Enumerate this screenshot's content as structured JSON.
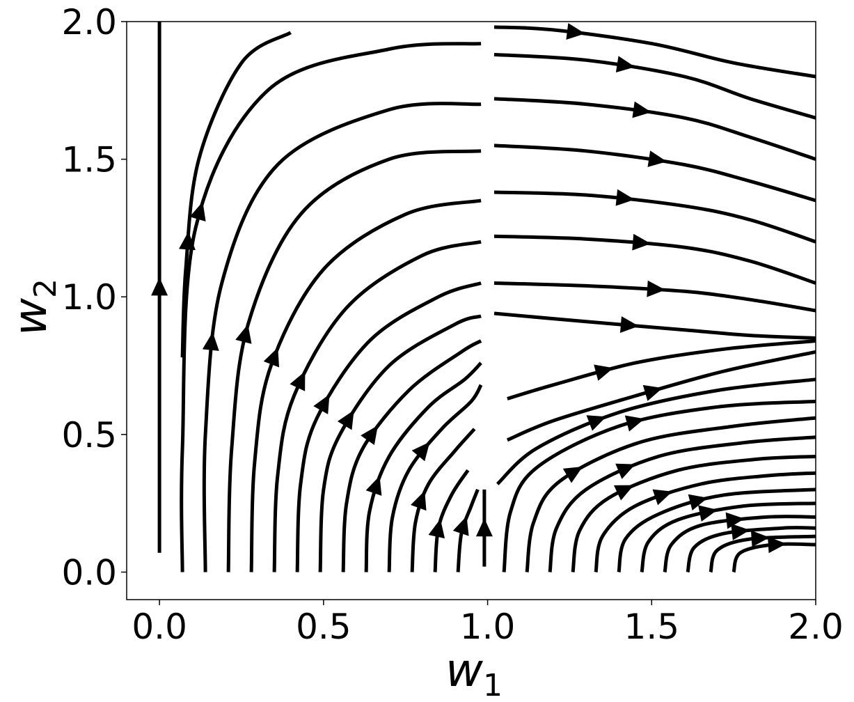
{
  "chart_data": {
    "type": "streamplot",
    "title": "",
    "xlabel": {
      "base": "w",
      "subscript": "1"
    },
    "ylabel": {
      "base": "w",
      "subscript": "2"
    },
    "xlim": [
      -0.1,
      2.0
    ],
    "ylim": [
      -0.1,
      2.0
    ],
    "xticks": [
      0.0,
      0.5,
      1.0,
      1.5,
      2.0
    ],
    "xtick_labels": [
      "0.0",
      "0.5",
      "1.0",
      "1.5",
      "2.0"
    ],
    "yticks": [
      0.0,
      0.5,
      1.0,
      1.5,
      2.0
    ],
    "ytick_labels": [
      "0.0",
      "0.5",
      "1.0",
      "1.5",
      "2.0"
    ],
    "grid": false,
    "line_color": "#000000",
    "left_band_top_w2": [
      0.76,
      1.14,
      1.51,
      1.71,
      1.88,
      1.96,
      2.0,
      2.0,
      2.0
    ],
    "left_band_pivot_w2": [
      0.24,
      0.3,
      0.45,
      0.6,
      0.75,
      0.85,
      0.92,
      0.95,
      0.96
    ],
    "right_band_bottom_w2": [
      0.84,
      0.8,
      0.7,
      0.62,
      0.56,
      0.47,
      0.42,
      0.34,
      0.26,
      0.18,
      0.1,
      0.02
    ],
    "right_band_pivot_w2": [
      0.78,
      0.74,
      0.66,
      0.58,
      0.52,
      0.43,
      0.38,
      0.3,
      0.22,
      0.16,
      0.09,
      0.01
    ],
    "streamlines": [
      {
        "points": [
          [
            0.0,
            0.07
          ],
          [
            0.0,
            2.0
          ]
        ],
        "arrows": [
          0.5
        ]
      },
      {
        "points": [
          [
            0.07,
            0.78
          ],
          [
            0.08,
            1.1
          ],
          [
            0.12,
            1.5
          ],
          [
            0.25,
            1.85
          ],
          [
            0.4,
            1.96
          ]
        ],
        "arrows": [
          0.32
        ]
      },
      {
        "points": [
          [
            0.07,
            0.0
          ],
          [
            0.07,
            0.45
          ],
          [
            0.11,
            1.25
          ],
          [
            0.33,
            1.75
          ],
          [
            0.7,
            1.9
          ],
          [
            0.98,
            1.92
          ]
        ],
        "arrows": [
          0.5
        ]
      },
      {
        "points": [
          [
            0.14,
            0.0
          ],
          [
            0.14,
            0.5
          ],
          [
            0.19,
            1.05
          ],
          [
            0.36,
            1.48
          ],
          [
            0.7,
            1.68
          ],
          [
            0.98,
            1.7
          ]
        ],
        "arrows": [
          0.36
        ]
      },
      {
        "points": [
          [
            0.21,
            0.0
          ],
          [
            0.22,
            0.45
          ],
          [
            0.27,
            0.9
          ],
          [
            0.43,
            1.3
          ],
          [
            0.7,
            1.5
          ],
          [
            0.98,
            1.53
          ]
        ],
        "arrows": [
          0.42
        ]
      },
      {
        "points": [
          [
            0.28,
            0.0
          ],
          [
            0.29,
            0.4
          ],
          [
            0.34,
            0.75
          ],
          [
            0.5,
            1.1
          ],
          [
            0.75,
            1.3
          ],
          [
            0.98,
            1.35
          ]
        ],
        "arrows": [
          0.44
        ]
      },
      {
        "points": [
          [
            0.35,
            0.0
          ],
          [
            0.36,
            0.35
          ],
          [
            0.41,
            0.64
          ],
          [
            0.57,
            0.96
          ],
          [
            0.8,
            1.15
          ],
          [
            0.98,
            1.2
          ]
        ],
        "arrows": [
          0.45
        ]
      },
      {
        "points": [
          [
            0.42,
            0.0
          ],
          [
            0.43,
            0.32
          ],
          [
            0.48,
            0.56
          ],
          [
            0.64,
            0.84
          ],
          [
            0.85,
            1.0
          ],
          [
            0.98,
            1.05
          ]
        ],
        "arrows": [
          0.46
        ]
      },
      {
        "points": [
          [
            0.49,
            0.0
          ],
          [
            0.5,
            0.3
          ],
          [
            0.55,
            0.5
          ],
          [
            0.7,
            0.75
          ],
          [
            0.9,
            0.9
          ],
          [
            0.98,
            0.93
          ]
        ],
        "arrows": [
          0.48
        ]
      },
      {
        "points": [
          [
            0.56,
            0.0
          ],
          [
            0.57,
            0.25
          ],
          [
            0.62,
            0.45
          ],
          [
            0.76,
            0.66
          ],
          [
            0.92,
            0.8
          ],
          [
            0.98,
            0.84
          ]
        ],
        "arrows": [
          0.5
        ]
      },
      {
        "points": [
          [
            0.63,
            0.0
          ],
          [
            0.64,
            0.22
          ],
          [
            0.7,
            0.42
          ],
          [
            0.82,
            0.6
          ],
          [
            0.93,
            0.7
          ],
          [
            0.98,
            0.76
          ]
        ],
        "arrows": [
          0.35
        ]
      },
      {
        "points": [
          [
            0.7,
            0.0
          ],
          [
            0.71,
            0.2
          ],
          [
            0.76,
            0.37
          ],
          [
            0.86,
            0.52
          ],
          [
            0.95,
            0.62
          ],
          [
            0.98,
            0.68
          ]
        ],
        "arrows": [
          0.6
        ]
      },
      {
        "points": [
          [
            0.77,
            0.0
          ],
          [
            0.78,
            0.18
          ],
          [
            0.82,
            0.32
          ],
          [
            0.9,
            0.44
          ],
          [
            0.96,
            0.52
          ]
        ],
        "arrows": [
          0.45
        ]
      },
      {
        "points": [
          [
            0.84,
            0.0
          ],
          [
            0.85,
            0.16
          ],
          [
            0.89,
            0.28
          ],
          [
            0.94,
            0.37
          ]
        ],
        "arrows": [
          0.4
        ]
      },
      {
        "points": [
          [
            0.91,
            0.0
          ],
          [
            0.92,
            0.14
          ],
          [
            0.95,
            0.24
          ],
          [
            0.97,
            0.3
          ]
        ],
        "arrows": [
          0.55
        ]
      },
      {
        "points": [
          [
            0.99,
            0.02
          ],
          [
            0.99,
            0.3
          ]
        ],
        "arrows": [
          0.5
        ]
      },
      {
        "points": [
          [
            1.02,
            1.98
          ],
          [
            1.2,
            1.97
          ],
          [
            1.5,
            1.92
          ],
          [
            1.75,
            1.85
          ],
          [
            2.0,
            1.8
          ]
        ],
        "arrows": [
          0.25
        ]
      },
      {
        "points": [
          [
            1.02,
            1.88
          ],
          [
            1.3,
            1.86
          ],
          [
            1.6,
            1.8
          ],
          [
            1.8,
            1.72
          ],
          [
            2.0,
            1.65
          ]
        ],
        "arrows": [
          0.4
        ]
      },
      {
        "points": [
          [
            1.02,
            1.72
          ],
          [
            1.3,
            1.7
          ],
          [
            1.6,
            1.65
          ],
          [
            1.8,
            1.58
          ],
          [
            2.0,
            1.5
          ]
        ],
        "arrows": [
          0.45
        ]
      },
      {
        "points": [
          [
            1.02,
            1.55
          ],
          [
            1.3,
            1.53
          ],
          [
            1.6,
            1.48
          ],
          [
            1.8,
            1.42
          ],
          [
            2.0,
            1.35
          ]
        ],
        "arrows": [
          0.5
        ]
      },
      {
        "points": [
          [
            1.02,
            1.38
          ],
          [
            1.3,
            1.37
          ],
          [
            1.6,
            1.33
          ],
          [
            1.8,
            1.28
          ],
          [
            2.0,
            1.2
          ]
        ],
        "arrows": [
          0.4
        ]
      },
      {
        "points": [
          [
            1.02,
            1.22
          ],
          [
            1.3,
            1.21
          ],
          [
            1.6,
            1.18
          ],
          [
            1.8,
            1.13
          ],
          [
            2.0,
            1.05
          ]
        ],
        "arrows": [
          0.45
        ]
      },
      {
        "points": [
          [
            1.02,
            1.05
          ],
          [
            1.3,
            1.04
          ],
          [
            1.6,
            1.02
          ],
          [
            1.8,
            0.99
          ],
          [
            2.0,
            0.95
          ]
        ],
        "arrows": [
          0.5
        ]
      },
      {
        "points": [
          [
            1.02,
            0.94
          ],
          [
            1.3,
            0.91
          ],
          [
            1.6,
            0.88
          ],
          [
            1.8,
            0.86
          ],
          [
            2.0,
            0.85
          ]
        ],
        "arrows": [
          0.42
        ]
      },
      {
        "points": [
          [
            1.06,
            0.63
          ],
          [
            1.2,
            0.68
          ],
          [
            1.45,
            0.76
          ],
          [
            1.72,
            0.81
          ],
          [
            2.0,
            0.84
          ]
        ],
        "arrows": [
          0.32
        ]
      },
      {
        "points": [
          [
            1.06,
            0.48
          ],
          [
            1.2,
            0.55
          ],
          [
            1.45,
            0.64
          ],
          [
            1.72,
            0.73
          ],
          [
            2.0,
            0.8
          ]
        ],
        "arrows": [
          0.48
        ]
      },
      {
        "points": [
          [
            1.03,
            0.32
          ],
          [
            1.15,
            0.45
          ],
          [
            1.4,
            0.58
          ],
          [
            1.7,
            0.66
          ],
          [
            2.0,
            0.7
          ]
        ],
        "arrows": [
          0.35
        ]
      },
      {
        "points": [
          [
            1.05,
            0.0
          ],
          [
            1.07,
            0.22
          ],
          [
            1.15,
            0.38
          ],
          [
            1.4,
            0.53
          ],
          [
            1.7,
            0.6
          ],
          [
            2.0,
            0.62
          ]
        ],
        "arrows": [
          0.55
        ]
      },
      {
        "points": [
          [
            1.12,
            0.0
          ],
          [
            1.14,
            0.18
          ],
          [
            1.22,
            0.33
          ],
          [
            1.46,
            0.47
          ],
          [
            1.75,
            0.53
          ],
          [
            2.0,
            0.56
          ]
        ],
        "arrows": [
          0.32
        ]
      },
      {
        "points": [
          [
            1.19,
            0.0
          ],
          [
            1.21,
            0.16
          ],
          [
            1.3,
            0.3
          ],
          [
            1.52,
            0.42
          ],
          [
            1.78,
            0.47
          ],
          [
            2.0,
            0.49
          ]
        ],
        "arrows": [
          0.42
        ]
      },
      {
        "points": [
          [
            1.26,
            0.0
          ],
          [
            1.28,
            0.15
          ],
          [
            1.37,
            0.27
          ],
          [
            1.58,
            0.37
          ],
          [
            1.82,
            0.41
          ],
          [
            2.0,
            0.42
          ]
        ],
        "arrows": [
          0.35
        ]
      },
      {
        "points": [
          [
            1.33,
            0.0
          ],
          [
            1.35,
            0.13
          ],
          [
            1.45,
            0.24
          ],
          [
            1.65,
            0.32
          ],
          [
            1.85,
            0.35
          ],
          [
            2.0,
            0.36
          ]
        ],
        "arrows": [
          0.42
        ]
      },
      {
        "points": [
          [
            1.4,
            0.0
          ],
          [
            1.42,
            0.12
          ],
          [
            1.52,
            0.21
          ],
          [
            1.72,
            0.28
          ],
          [
            2.0,
            0.3
          ]
        ],
        "arrows": [
          0.5
        ]
      },
      {
        "points": [
          [
            1.47,
            0.0
          ],
          [
            1.49,
            0.11
          ],
          [
            1.58,
            0.19
          ],
          [
            1.78,
            0.24
          ],
          [
            2.0,
            0.25
          ]
        ],
        "arrows": [
          0.48
        ]
      },
      {
        "points": [
          [
            1.54,
            0.0
          ],
          [
            1.56,
            0.1
          ],
          [
            1.65,
            0.17
          ],
          [
            1.85,
            0.2
          ],
          [
            2.0,
            0.2
          ]
        ],
        "arrows": [
          0.55
        ]
      },
      {
        "points": [
          [
            1.61,
            0.0
          ],
          [
            1.63,
            0.09
          ],
          [
            1.72,
            0.14
          ],
          [
            1.9,
            0.16
          ],
          [
            2.0,
            0.16
          ]
        ],
        "arrows": [
          0.5
        ]
      },
      {
        "points": [
          [
            1.68,
            0.0
          ],
          [
            1.7,
            0.08
          ],
          [
            1.8,
            0.12
          ],
          [
            2.0,
            0.13
          ]
        ],
        "arrows": [
          0.55
        ]
      },
      {
        "points": [
          [
            1.75,
            0.0
          ],
          [
            1.77,
            0.07
          ],
          [
            1.87,
            0.1
          ],
          [
            2.0,
            0.1
          ]
        ],
        "arrows": [
          0.6
        ]
      }
    ]
  }
}
